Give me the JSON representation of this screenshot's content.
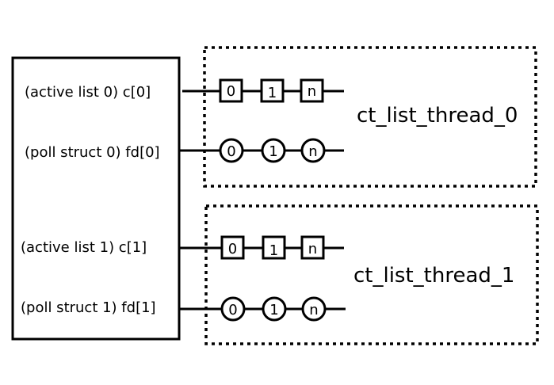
{
  "colors": {
    "stroke": "#000000",
    "background": "#ffffff"
  },
  "left_box": {
    "rows": [
      {
        "label": "(active list 0) c[0]"
      },
      {
        "label": "(poll struct 0) fd[0]"
      },
      {
        "label": "(active list 1) c[1]"
      },
      {
        "label": "(poll struct 1) fd[1]"
      }
    ]
  },
  "threads": [
    {
      "name": "ct_list_thread_0",
      "active_nodes": [
        "0",
        "1",
        "n"
      ],
      "poll_nodes": [
        "0",
        "1",
        "n"
      ]
    },
    {
      "name": "ct_list_thread_1",
      "active_nodes": [
        "0",
        "1",
        "n"
      ],
      "poll_nodes": [
        "0",
        "1",
        "n"
      ]
    }
  ]
}
